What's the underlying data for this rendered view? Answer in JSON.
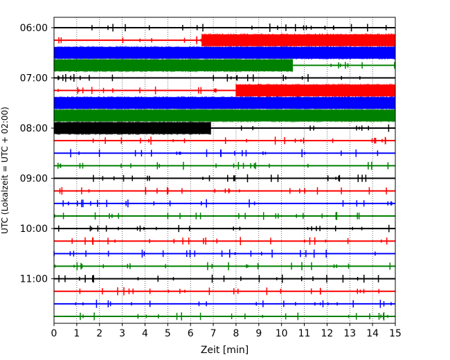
{
  "chart_data": {
    "type": "line",
    "title": "",
    "xlabel": "Zeit  [min]",
    "ylabel": "UTC (Lokalzeit = UTC + 02:00)",
    "xlim": [
      0,
      15
    ],
    "x_ticks": [
      "0",
      "1",
      "2",
      "3",
      "4",
      "5",
      "6",
      "7",
      "8",
      "9",
      "10",
      "11",
      "12",
      "13",
      "14",
      "15"
    ],
    "y_tick_labels": [
      "06:00",
      "07:00",
      "08:00",
      "09:00",
      "10:00",
      "11:00"
    ],
    "grid": "vertical dotted",
    "trace_colors": [
      "#000000",
      "#ff0000",
      "#0000ff",
      "#008000"
    ],
    "traces": [
      {
        "start": "06:00",
        "color": "black",
        "big_from_min": null,
        "big_to_min": null
      },
      {
        "start": "06:15",
        "color": "red",
        "big_from_min": 6.5,
        "big_to_min": 15
      },
      {
        "start": "06:30",
        "color": "blue",
        "big_from_min": 0,
        "big_to_min": 15
      },
      {
        "start": "06:45",
        "color": "green",
        "big_from_min": 0,
        "big_to_min": 10.5
      },
      {
        "start": "07:00",
        "color": "black",
        "big_from_min": null,
        "big_to_min": null
      },
      {
        "start": "07:15",
        "color": "red",
        "big_from_min": 8,
        "big_to_min": 15
      },
      {
        "start": "07:30",
        "color": "blue",
        "big_from_min": 0,
        "big_to_min": 15
      },
      {
        "start": "07:45",
        "color": "green",
        "big_from_min": 0,
        "big_to_min": 15
      },
      {
        "start": "08:00",
        "color": "black",
        "big_from_min": 0,
        "big_to_min": 6.9
      },
      {
        "start": "08:15",
        "color": "red",
        "big_from_min": null,
        "big_to_min": null
      },
      {
        "start": "08:30",
        "color": "blue",
        "big_from_min": null,
        "big_to_min": null
      },
      {
        "start": "08:45",
        "color": "green",
        "big_from_min": null,
        "big_to_min": null
      },
      {
        "start": "09:00",
        "color": "black",
        "big_from_min": null,
        "big_to_min": null
      },
      {
        "start": "09:15",
        "color": "red",
        "big_from_min": null,
        "big_to_min": null
      },
      {
        "start": "09:30",
        "color": "blue",
        "big_from_min": null,
        "big_to_min": null
      },
      {
        "start": "09:45",
        "color": "green",
        "big_from_min": null,
        "big_to_min": null
      },
      {
        "start": "10:00",
        "color": "black",
        "big_from_min": null,
        "big_to_min": null
      },
      {
        "start": "10:15",
        "color": "red",
        "big_from_min": null,
        "big_to_min": null
      },
      {
        "start": "10:30",
        "color": "blue",
        "big_from_min": null,
        "big_to_min": null
      },
      {
        "start": "10:45",
        "color": "green",
        "big_from_min": null,
        "big_to_min": null
      },
      {
        "start": "11:00",
        "color": "black",
        "big_from_min": null,
        "big_to_min": null
      },
      {
        "start": "11:15",
        "color": "red",
        "big_from_min": null,
        "big_to_min": null
      },
      {
        "start": "11:30",
        "color": "blue",
        "big_from_min": null,
        "big_to_min": null
      },
      {
        "start": "11:45",
        "color": "green",
        "big_from_min": null,
        "big_to_min": null
      }
    ]
  }
}
